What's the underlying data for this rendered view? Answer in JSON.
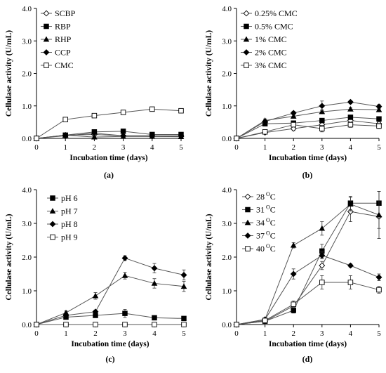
{
  "chart_data": [
    {
      "type": "line",
      "panel_label": "(a)",
      "xlabel": "Incubation time (days)",
      "ylabel": "Cellulase activity (U/mL)",
      "xlim": [
        0,
        5
      ],
      "ylim": [
        0,
        4
      ],
      "x_ticks": [
        "0",
        "1",
        "2",
        "3",
        "4",
        "5"
      ],
      "y_ticks": [
        "0.0",
        "1.0",
        "2.0",
        "3.0",
        "4.0"
      ],
      "grid": false,
      "legend_position": "top-left",
      "x": [
        0,
        1,
        2,
        3,
        4,
        5
      ],
      "series": [
        {
          "name": "SCBP",
          "marker": "diamond-open",
          "values": [
            0,
            0.1,
            0.12,
            0.08,
            0.06,
            0.06
          ],
          "errors": [
            0,
            0.02,
            0.02,
            0.02,
            0.02,
            0.02
          ]
        },
        {
          "name": "RBP",
          "marker": "square-filled",
          "values": [
            0,
            0.1,
            0.2,
            0.22,
            0.12,
            0.12
          ],
          "errors": [
            0,
            0.02,
            0.02,
            0.03,
            0.02,
            0.02
          ]
        },
        {
          "name": "RHP",
          "marker": "triangle-filled",
          "values": [
            0,
            0.1,
            0.04,
            0.06,
            0.06,
            0.05
          ],
          "errors": [
            0,
            0.02,
            0.02,
            0.02,
            0.02,
            0.02
          ]
        },
        {
          "name": "CCP",
          "marker": "diamond-filled",
          "values": [
            0,
            0.08,
            0.16,
            0.08,
            0.08,
            0.08
          ],
          "errors": [
            0,
            0.02,
            0.02,
            0.02,
            0.02,
            0.02
          ]
        },
        {
          "name": "CMC",
          "marker": "square-open",
          "values": [
            0,
            0.58,
            0.7,
            0.8,
            0.9,
            0.85
          ],
          "errors": [
            0,
            0.03,
            0.03,
            0.03,
            0.06,
            0.03
          ]
        }
      ]
    },
    {
      "type": "line",
      "panel_label": "(b)",
      "xlabel": "Incubation time (days)",
      "ylabel": "Cellulase activity (U/mL)",
      "xlim": [
        0,
        5
      ],
      "ylim": [
        0,
        4
      ],
      "x_ticks": [
        "0",
        "1",
        "2",
        "3",
        "4",
        "5"
      ],
      "y_ticks": [
        "0.0",
        "1.0",
        "2.0",
        "3.0",
        "4.0"
      ],
      "grid": false,
      "legend_position": "top-left",
      "x": [
        0,
        1,
        2,
        3,
        4,
        5
      ],
      "series": [
        {
          "name": "0.25% CMC",
          "marker": "diamond-open",
          "values": [
            0,
            0.18,
            0.3,
            0.42,
            0.55,
            0.45
          ],
          "errors": [
            0,
            0.04,
            0.06,
            0.08,
            0.06,
            0.06
          ]
        },
        {
          "name": "0.5% CMC",
          "marker": "square-filled",
          "values": [
            0,
            0.45,
            0.47,
            0.55,
            0.65,
            0.6
          ],
          "errors": [
            0,
            0.04,
            0.05,
            0.05,
            0.05,
            0.05
          ]
        },
        {
          "name": "1% CMC",
          "marker": "triangle-filled",
          "values": [
            0,
            0.55,
            0.68,
            0.82,
            0.9,
            0.88
          ],
          "errors": [
            0,
            0.05,
            0.05,
            0.06,
            0.05,
            0.05
          ]
        },
        {
          "name": "2% CMC",
          "marker": "diamond-filled",
          "values": [
            0,
            0.52,
            0.78,
            1.0,
            1.12,
            0.98
          ],
          "errors": [
            0,
            0.05,
            0.05,
            0.15,
            0.05,
            0.06
          ]
        },
        {
          "name": "3% CMC",
          "marker": "square-open",
          "values": [
            0,
            0.2,
            0.42,
            0.3,
            0.42,
            0.38
          ],
          "errors": [
            0,
            0.04,
            0.06,
            0.1,
            0.08,
            0.08
          ]
        }
      ]
    },
    {
      "type": "line",
      "panel_label": "(c)",
      "xlabel": "Incubation time (days)",
      "ylabel": "Cellulase activity (U/mL)",
      "xlim": [
        0,
        5
      ],
      "ylim": [
        0,
        4
      ],
      "x_ticks": [
        "0",
        "1",
        "2",
        "3",
        "4",
        "5"
      ],
      "y_ticks": [
        "0.0",
        "1.0",
        "2.0",
        "3.0",
        "4.0"
      ],
      "grid": false,
      "legend_position": "top-left",
      "x": [
        0,
        1,
        2,
        3,
        4,
        5
      ],
      "series": [
        {
          "name": "pH 6",
          "marker": "square-filled",
          "values": [
            0,
            0.22,
            0.27,
            0.33,
            0.2,
            0.18
          ],
          "errors": [
            0,
            0.04,
            0.04,
            0.12,
            0.04,
            0.04
          ]
        },
        {
          "name": "pH 7",
          "marker": "triangle-filled",
          "values": [
            0,
            0.35,
            0.85,
            1.45,
            1.22,
            1.13
          ],
          "errors": [
            0,
            0.05,
            0.1,
            0.1,
            0.14,
            0.15
          ]
        },
        {
          "name": "pH 8",
          "marker": "diamond-filled",
          "values": [
            0,
            0.27,
            0.38,
            1.97,
            1.67,
            1.47
          ],
          "errors": [
            0,
            0.04,
            0.05,
            0.07,
            0.14,
            0.15
          ]
        },
        {
          "name": "pH 9",
          "marker": "square-open",
          "values": [
            0,
            0.0,
            0.0,
            0.0,
            0.0,
            0.0
          ],
          "errors": [
            0,
            0.02,
            0.02,
            0.02,
            0.02,
            0.02
          ]
        }
      ]
    },
    {
      "type": "line",
      "panel_label": "(d)",
      "xlabel": "Incubation time (days)",
      "ylabel": "Cellulase activity (U/mL)",
      "xlim": [
        0,
        5
      ],
      "ylim": [
        0,
        4
      ],
      "x_ticks": [
        "0",
        "1",
        "2",
        "3",
        "4",
        "5"
      ],
      "y_ticks": [
        "0.0",
        "1.0",
        "2.0",
        "3.0",
        "4.0"
      ],
      "grid": false,
      "legend_position": "top-left",
      "x": [
        0,
        1,
        2,
        3,
        4,
        5
      ],
      "series": [
        {
          "name": "28",
          "unit_sup": "O",
          "unit": "C",
          "marker": "diamond-open",
          "values": [
            0,
            0.1,
            0.55,
            1.75,
            3.35,
            3.2
          ],
          "errors": [
            0,
            0.05,
            0.1,
            0.12,
            0.3,
            0.35
          ]
        },
        {
          "name": "31",
          "unit_sup": "O",
          "unit": "C",
          "marker": "square-filled",
          "values": [
            0,
            0.1,
            0.42,
            2.18,
            3.6,
            3.6
          ],
          "errors": [
            0,
            0.05,
            0.08,
            0.2,
            0.2,
            0.35
          ]
        },
        {
          "name": "34",
          "unit_sup": "O",
          "unit": "C",
          "marker": "triangle-filled",
          "values": [
            0,
            0.15,
            2.35,
            2.85,
            3.57,
            3.25
          ],
          "errors": [
            0,
            0.05,
            0.08,
            0.2,
            0.2,
            0.7
          ]
        },
        {
          "name": "37",
          "unit_sup": "O",
          "unit": "C",
          "marker": "diamond-filled",
          "values": [
            0,
            0.15,
            1.5,
            2.05,
            1.75,
            1.4
          ],
          "errors": [
            0,
            0.05,
            0.15,
            0.1,
            0.05,
            0.1
          ]
        },
        {
          "name": "40",
          "unit_sup": "O",
          "unit": "C",
          "marker": "square-open",
          "values": [
            0,
            0.12,
            0.6,
            1.25,
            1.25,
            1.03
          ],
          "errors": [
            0,
            0.05,
            0.1,
            0.2,
            0.2,
            0.1
          ]
        }
      ]
    }
  ]
}
